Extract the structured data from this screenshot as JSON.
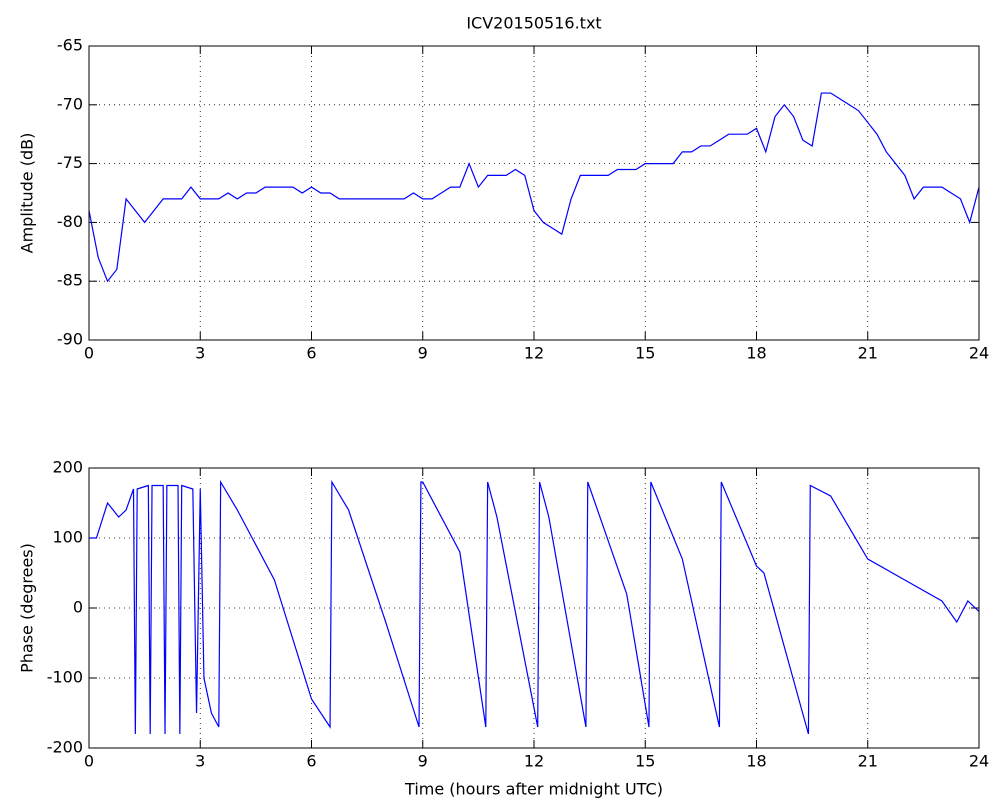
{
  "chart_data": [
    {
      "type": "line",
      "title": "ICV20150516.txt",
      "y_label": "Amplitude (dB)",
      "x": [
        0,
        0.25,
        0.5,
        0.75,
        1,
        1.25,
        1.5,
        1.75,
        2,
        2.25,
        2.5,
        2.75,
        3,
        3.25,
        3.5,
        3.75,
        4,
        4.25,
        4.5,
        4.75,
        5,
        5.25,
        5.5,
        5.75,
        6,
        6.25,
        6.5,
        6.75,
        7,
        7.25,
        7.5,
        7.75,
        8,
        8.25,
        8.5,
        8.75,
        9,
        9.25,
        9.5,
        9.75,
        10,
        10.25,
        10.5,
        10.75,
        11,
        11.25,
        11.5,
        11.75,
        12,
        12.25,
        12.5,
        12.75,
        13,
        13.25,
        13.5,
        13.75,
        14,
        14.25,
        14.5,
        14.75,
        15,
        15.25,
        15.5,
        15.75,
        16,
        16.25,
        16.5,
        16.75,
        17,
        17.25,
        17.5,
        17.75,
        18,
        18.25,
        18.5,
        18.75,
        19,
        19.25,
        19.5,
        19.75,
        20,
        20.25,
        20.5,
        20.75,
        21,
        21.25,
        21.5,
        21.75,
        22,
        22.25,
        22.5,
        22.75,
        23,
        23.25,
        23.5,
        23.75,
        24
      ],
      "series": [
        {
          "color": "#0000ff",
          "values": [
            -79,
            -83,
            -85,
            -84,
            -78,
            -79,
            -80,
            -79,
            -78,
            -78,
            -78,
            -77,
            -78,
            -78,
            -78,
            -77.5,
            -78,
            -77.5,
            -77.5,
            -77,
            -77,
            -77,
            -77,
            -77.5,
            -77,
            -77.5,
            -77.5,
            -78,
            -78,
            -78,
            -78,
            -78,
            -78,
            -78,
            -78,
            -77.5,
            -78,
            -78,
            -77.5,
            -77,
            -77,
            -75,
            -77,
            -76,
            -76,
            -76,
            -75.5,
            -76,
            -79,
            -80,
            -80.5,
            -81,
            -78,
            -76,
            -76,
            -76,
            -76,
            -75.5,
            -75.5,
            -75.5,
            -75,
            -75,
            -75,
            -75,
            -74,
            -74,
            -73.5,
            -73.5,
            -73,
            -72.5,
            -72.5,
            -72.5,
            -72,
            -74,
            -71,
            -70,
            -71,
            -73,
            -73.5,
            -69,
            -69,
            -69.5,
            -70,
            -70.5,
            -71.5,
            -72.5,
            -74,
            -75,
            -76,
            -78,
            -77,
            -77,
            -77,
            -77.5,
            -78,
            -80,
            -77
          ]
        }
      ],
      "xlim": [
        0,
        24
      ],
      "xticks": [
        0,
        3,
        6,
        9,
        12,
        15,
        18,
        21,
        24
      ],
      "ylim": [
        -90,
        -65
      ],
      "yticks": [
        -90,
        -85,
        -80,
        -75,
        -70,
        -65
      ],
      "grid": true
    },
    {
      "type": "line",
      "y_label": "Phase (degrees)",
      "x_label": "Time (hours after midnight UTC)",
      "x": [
        0,
        0.2,
        0.5,
        0.8,
        1.0,
        1.2,
        1.25,
        1.3,
        1.6,
        1.65,
        1.7,
        2.0,
        2.05,
        2.1,
        2.4,
        2.45,
        2.5,
        2.8,
        2.9,
        3.0,
        3.1,
        3.3,
        3.5,
        3.55,
        4,
        5,
        6,
        6.5,
        6.55,
        7,
        8,
        8.9,
        8.95,
        9,
        10,
        10.7,
        10.75,
        11,
        12.1,
        12.15,
        12.4,
        13.4,
        13.45,
        14.5,
        15.1,
        15.15,
        16,
        17,
        17.05,
        18,
        18.2,
        19.4,
        19.45,
        20,
        21,
        22,
        23,
        23.4,
        23.7,
        24
      ],
      "series": [
        {
          "color": "#0000ff",
          "values": [
            100,
            100,
            150,
            130,
            140,
            170,
            -180,
            170,
            175,
            -180,
            175,
            175,
            -180,
            175,
            175,
            -180,
            175,
            170,
            -150,
            170,
            -100,
            -150,
            -170,
            180,
            140,
            40,
            -130,
            -170,
            180,
            140,
            -20,
            -170,
            180,
            180,
            80,
            -170,
            180,
            130,
            -170,
            180,
            130,
            -170,
            180,
            20,
            -170,
            180,
            70,
            -170,
            180,
            60,
            50,
            -180,
            175,
            160,
            70,
            40,
            10,
            -20,
            10,
            -5
          ]
        }
      ],
      "xlim": [
        0,
        24
      ],
      "xticks": [
        0,
        3,
        6,
        9,
        12,
        15,
        18,
        21,
        24
      ],
      "ylim": [
        -200,
        200
      ],
      "yticks": [
        -200,
        -100,
        0,
        100,
        200
      ],
      "grid": true
    }
  ]
}
